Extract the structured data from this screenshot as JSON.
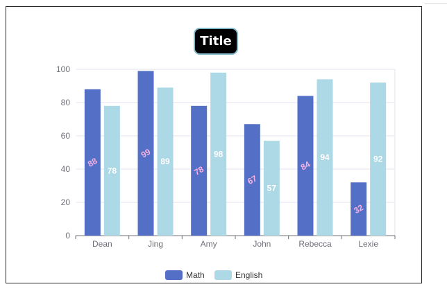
{
  "chart_data": {
    "type": "bar",
    "title": "Title",
    "categories": [
      "Dean",
      "Jing",
      "Amy",
      "John",
      "Rebecca",
      "Lexie"
    ],
    "series": [
      {
        "name": "Math",
        "values": [
          88,
          99,
          78,
          67,
          84,
          32
        ],
        "color": "#5470c6",
        "label_color": "#f7b0e0"
      },
      {
        "name": "English",
        "values": [
          78,
          89,
          98,
          57,
          94,
          92
        ],
        "color": "#add8e6",
        "label_color": "#ffffff"
      }
    ],
    "yticks": [
      "0",
      "20",
      "40",
      "60",
      "80",
      "100"
    ],
    "ylim": [
      0,
      100
    ],
    "grid": true,
    "legend_position": "bottom-center",
    "colors": {
      "title_bg": "#000000",
      "title_border": "#7fb8c9",
      "axis": "#6e7079",
      "grid": "#e0e6f1"
    }
  }
}
